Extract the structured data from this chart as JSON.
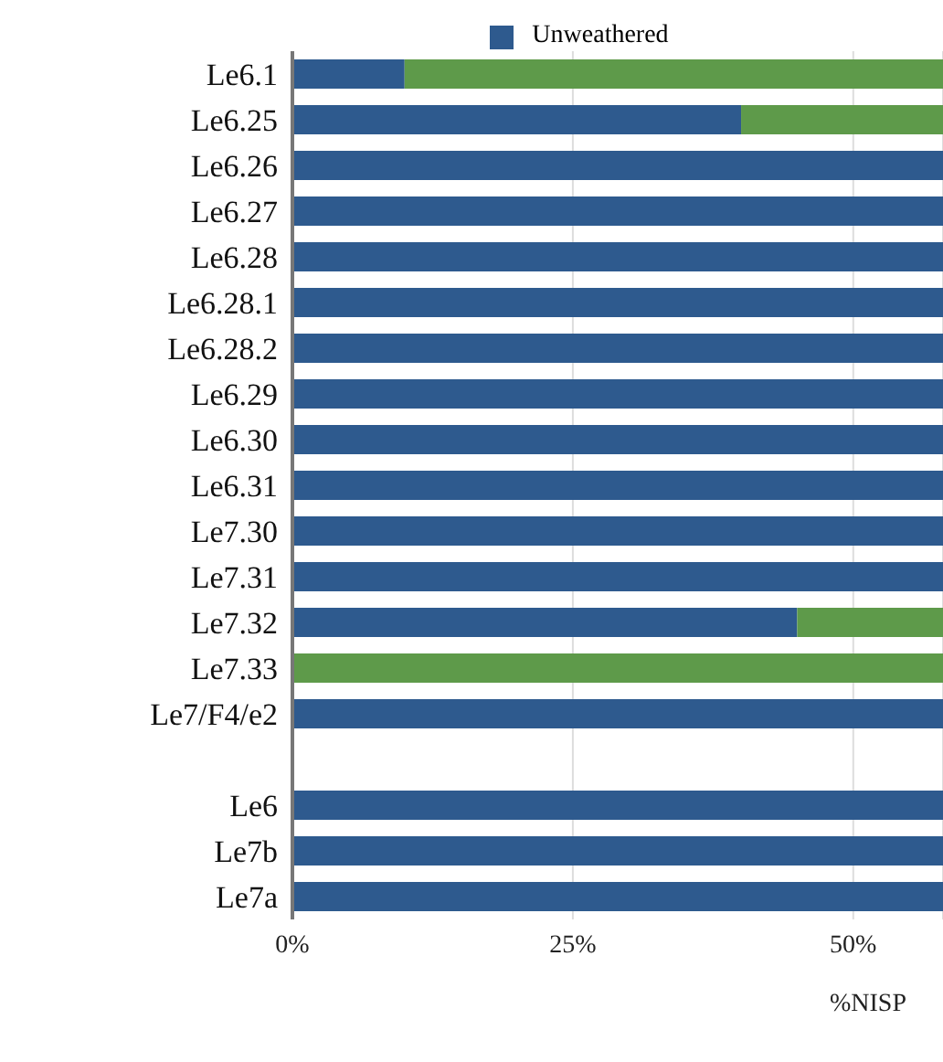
{
  "chart_data": {
    "type": "bar",
    "orientation": "horizontal",
    "stacked": true,
    "xlabel": "%NISP",
    "categories": [
      "Le6.1",
      "Le6.25",
      "Le6.26",
      "Le6.27",
      "Le6.28",
      "Le6.28.1",
      "Le6.28.2",
      "Le6.29",
      "Le6.30",
      "Le6.31",
      "Le7.30",
      "Le7.31",
      "Le7.32",
      "Le7.33",
      "Le7/F4/e2",
      null,
      "Le6",
      "Le7b",
      "Le7a"
    ],
    "series": [
      {
        "name": "Unweathered",
        "color": "#2e5a8e",
        "values": [
          10,
          40,
          58,
          58,
          58,
          58,
          58,
          58,
          58,
          58,
          58,
          58,
          45,
          0,
          58,
          null,
          58,
          58,
          58
        ]
      },
      {
        "color": "#5e9a4a",
        "values": [
          48,
          18,
          0,
          0,
          0,
          0,
          0,
          0,
          0,
          0,
          0,
          0,
          13,
          58,
          0,
          null,
          0,
          0,
          0
        ]
      }
    ],
    "xlim": [
      0,
      58
    ],
    "xticks": [
      {
        "value": 0,
        "label": "0%"
      },
      {
        "value": 25,
        "label": "25%"
      },
      {
        "value": 50,
        "label": "50%"
      }
    ],
    "grid": "x",
    "legend": "top"
  }
}
